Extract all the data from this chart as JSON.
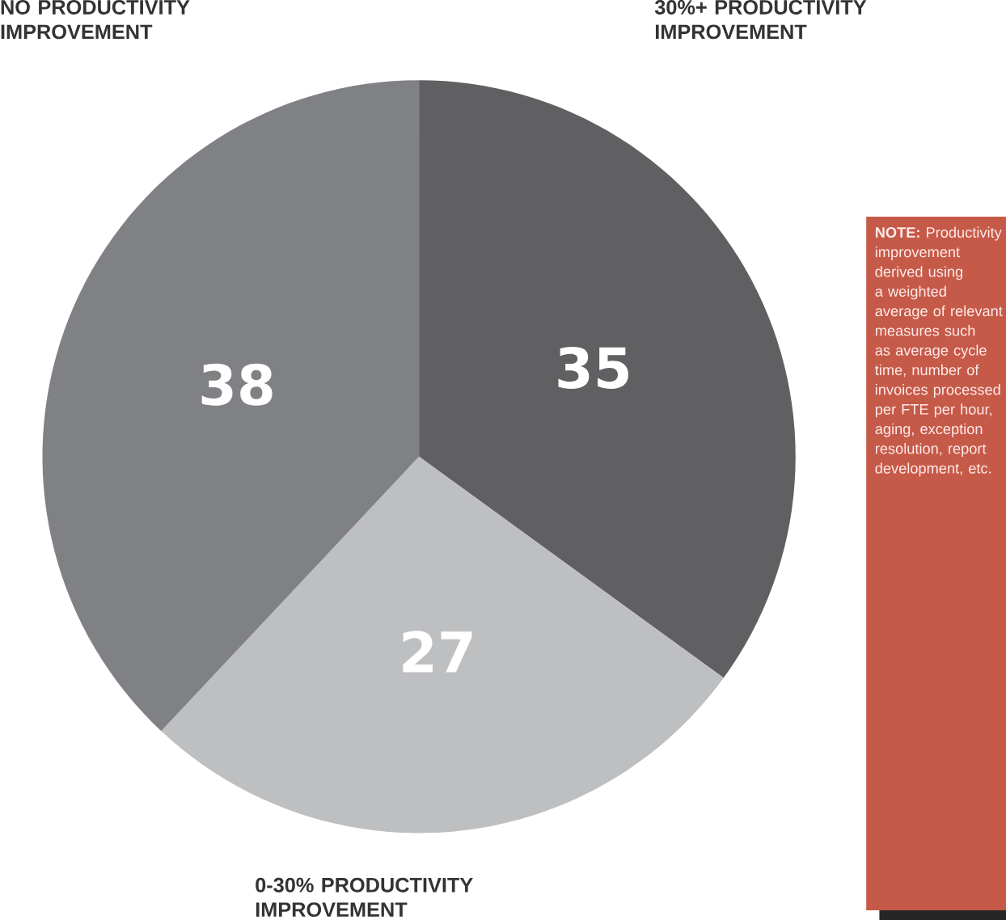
{
  "chart_data": {
    "type": "pie",
    "categories": [
      "30%+ PRODUCTIVITY IMPROVEMENT",
      "0-30% PRODUCTIVITY IMPROVEMENT",
      "NO PRODUCTIVITY IMPROVEMENT"
    ],
    "values": [
      35,
      27,
      38
    ],
    "colors": [
      "#606062",
      "#bebfc1",
      "#808184"
    ],
    "data_labels": true,
    "annotations": [
      "**NOTE:** Productivity improvement derived using a weighted average of relevant measures such as average cycle time, number of invoices processed per FTE per hour, aging, exception resolution, report development, etc."
    ]
  }
}
